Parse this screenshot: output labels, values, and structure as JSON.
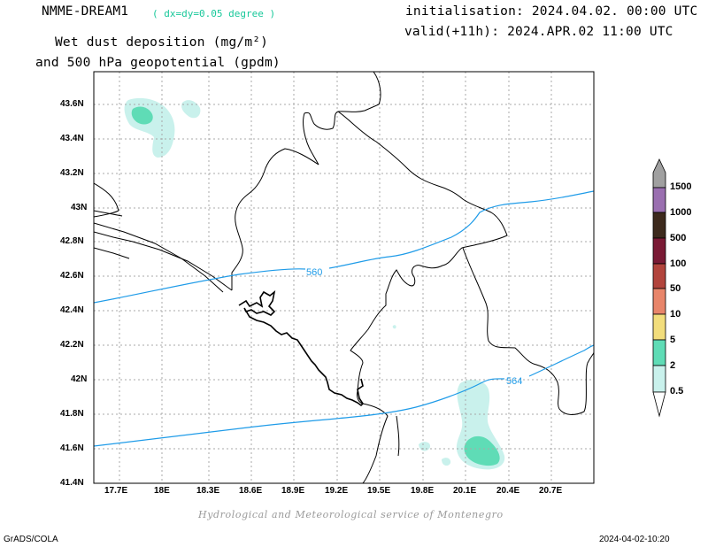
{
  "header": {
    "model": "NMME-DREAM1",
    "resolution": "( dx=dy=0.05 degree )",
    "title_line1": "Wet dust deposition (mg/m²)",
    "title_line2": "and 500 hPa geopotential (gpdm)",
    "init": "initialisation: 2024.04.02. 00:00 UTC",
    "valid": "valid(+11h): 2024.APR.02 11:00 UTC"
  },
  "axes": {
    "y_ticks": [
      "43.6N",
      "43.4N",
      "43.2N",
      "43N",
      "42.8N",
      "42.6N",
      "42.4N",
      "42.2N",
      "42N",
      "41.8N",
      "41.6N",
      "41.4N"
    ],
    "x_ticks": [
      "17.7E",
      "18E",
      "18.3E",
      "18.6E",
      "18.9E",
      "19.2E",
      "19.5E",
      "19.8E",
      "20.1E",
      "20.4E",
      "20.7E"
    ]
  },
  "map_data": {
    "lon_range": [
      17.52,
      20.98
    ],
    "lat_range": [
      41.4,
      43.75
    ],
    "contours": [
      {
        "label": "560",
        "color": "#1e9be8"
      },
      {
        "label": "564",
        "color": "#1e9be8"
      }
    ]
  },
  "colorbar": {
    "levels": [
      "1500",
      "1000",
      "500",
      "100",
      "50",
      "10",
      "5",
      "2",
      "0.5"
    ],
    "colors": [
      "#a0a0a0",
      "#9a6fb0",
      "#3d2a1d",
      "#7a1a35",
      "#b2443c",
      "#e8856a",
      "#f2dd7c",
      "#5fdcb6",
      "#c9f1ec"
    ]
  },
  "credit": "Hydrological and Meteorological service of Montenegro",
  "footer": {
    "left": "GrADS/COLA",
    "right": "2024-04-02-10:20"
  }
}
